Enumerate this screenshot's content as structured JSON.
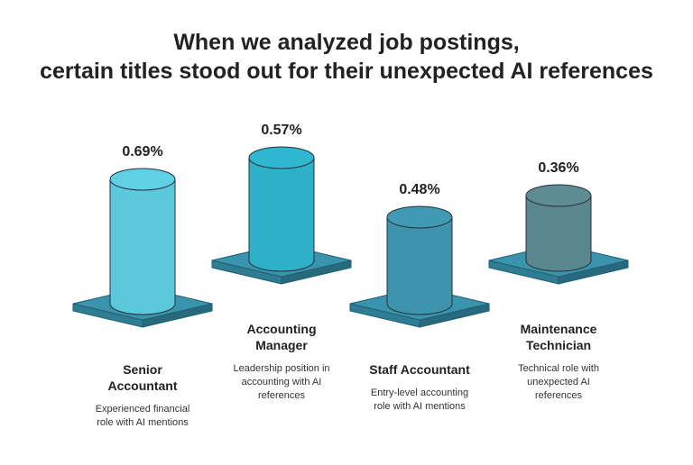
{
  "title_line1": "When we analyzed job postings,",
  "title_line2": "certain titles stood out for their unexpected AI references",
  "chart_data": {
    "type": "bar",
    "title": "When we analyzed job postings, certain titles stood out for their unexpected AI references",
    "categories": [
      "Senior Accountant",
      "Accounting Manager",
      "Staff Accountant",
      "Maintenance Technician"
    ],
    "values": [
      0.69,
      0.57,
      0.48,
      0.36
    ],
    "value_labels": [
      "0.69%",
      "0.57%",
      "0.48%",
      "0.36%"
    ],
    "unit": "%",
    "name_lines": [
      [
        "Senior",
        "Accountant"
      ],
      [
        "Accounting",
        "Manager"
      ],
      [
        "Staff Accountant"
      ],
      [
        "Maintenance",
        "Technician"
      ]
    ],
    "description_lines": [
      [
        "Experienced financial",
        "role with AI mentions"
      ],
      [
        "Leadership position in",
        "accounting with AI",
        "references"
      ],
      [
        "Entry-level accounting",
        "role with AI mentions"
      ],
      [
        "Technical role with",
        "unexpected AI",
        "references"
      ]
    ],
    "colors": [
      "#5bc8dc",
      "#2db0c8",
      "#3e94ac",
      "#5a878f"
    ],
    "base_color": "#3a94ad",
    "base_side_color": "#2f7d93",
    "grid": false,
    "legend": "none"
  }
}
